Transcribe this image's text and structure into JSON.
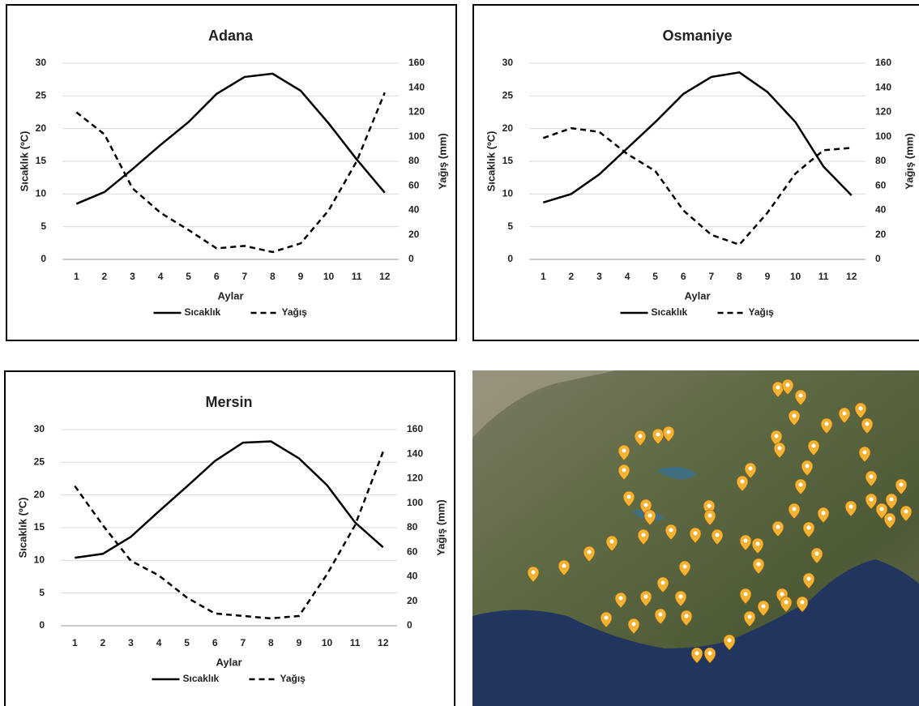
{
  "chart_data": [
    {
      "type": "line",
      "title": "Adana",
      "x_label": "Aylar",
      "y_label": "Sıcaklık (ºC)",
      "y2_label": "Yağış (mm)",
      "categories": [
        1,
        2,
        3,
        4,
        5,
        6,
        7,
        8,
        9,
        10,
        11,
        12
      ],
      "ylim": [
        0,
        30
      ],
      "yticks": [
        0,
        5,
        10,
        15,
        20,
        25,
        30
      ],
      "y2lim": [
        0,
        160
      ],
      "y2ticks": [
        0,
        20,
        40,
        60,
        80,
        100,
        120,
        140,
        160
      ],
      "grid": true,
      "series": [
        {
          "name": "Sıcaklık",
          "color": "#000000",
          "dash": "solid",
          "values": [
            8.5,
            10.3,
            13.8,
            17.5,
            21,
            25.3,
            27.9,
            28.4,
            25.8,
            20.8,
            15.3,
            10.2
          ]
        },
        {
          "name": "Yağış",
          "color": "#000000",
          "dash": "dashed",
          "axis": "y2",
          "values": [
            120,
            102,
            58,
            38,
            24,
            9,
            11,
            6,
            13,
            40,
            80,
            136
          ]
        }
      ]
    },
    {
      "type": "line",
      "title": "Osmaniye",
      "x_label": "Aylar",
      "y_label": "Sıcaklık (ºC)",
      "y2_label": "Yağış (mm)",
      "categories": [
        1,
        2,
        3,
        4,
        5,
        6,
        7,
        8,
        9,
        10,
        11,
        12
      ],
      "ylim": [
        0,
        30
      ],
      "yticks": [
        0,
        5,
        10,
        15,
        20,
        25,
        30
      ],
      "y2lim": [
        0,
        160
      ],
      "y2ticks": [
        0,
        20,
        40,
        60,
        80,
        100,
        120,
        140,
        160
      ],
      "grid": true,
      "series": [
        {
          "name": "Sıcaklık",
          "color": "#000000",
          "dash": "solid",
          "values": [
            8.7,
            10,
            13,
            17,
            21,
            25.3,
            27.9,
            28.6,
            25.6,
            21,
            14.2,
            9.8
          ]
        },
        {
          "name": "Yağış",
          "color": "#000000",
          "dash": "dashed",
          "axis": "y2",
          "values": [
            99,
            107,
            104,
            86,
            72,
            40,
            20,
            12,
            38,
            70,
            89,
            91
          ]
        }
      ]
    },
    {
      "type": "line",
      "title": "Mersin",
      "x_label": "Aylar",
      "y_label": "Sıcaklık (ºC)",
      "y2_label": "Yağış (mm)",
      "categories": [
        1,
        2,
        3,
        4,
        5,
        6,
        7,
        8,
        9,
        10,
        11,
        12
      ],
      "ylim": [
        0,
        30
      ],
      "yticks": [
        0,
        5,
        10,
        15,
        20,
        25,
        30
      ],
      "y2lim": [
        0,
        160
      ],
      "y2ticks": [
        0,
        20,
        40,
        60,
        80,
        100,
        120,
        140,
        160
      ],
      "grid": true,
      "series": [
        {
          "name": "Sıcaklık",
          "color": "#000000",
          "dash": "solid",
          "values": [
            10.4,
            11,
            13.6,
            17.5,
            21.3,
            25.2,
            28,
            28.2,
            25.6,
            21.5,
            15.8,
            12
          ]
        },
        {
          "name": "Yağış",
          "color": "#000000",
          "dash": "dashed",
          "axis": "y2",
          "values": [
            114,
            82,
            53,
            41,
            23,
            10,
            8,
            6,
            8,
            42,
            82,
            142
          ]
        }
      ]
    }
  ]
}
